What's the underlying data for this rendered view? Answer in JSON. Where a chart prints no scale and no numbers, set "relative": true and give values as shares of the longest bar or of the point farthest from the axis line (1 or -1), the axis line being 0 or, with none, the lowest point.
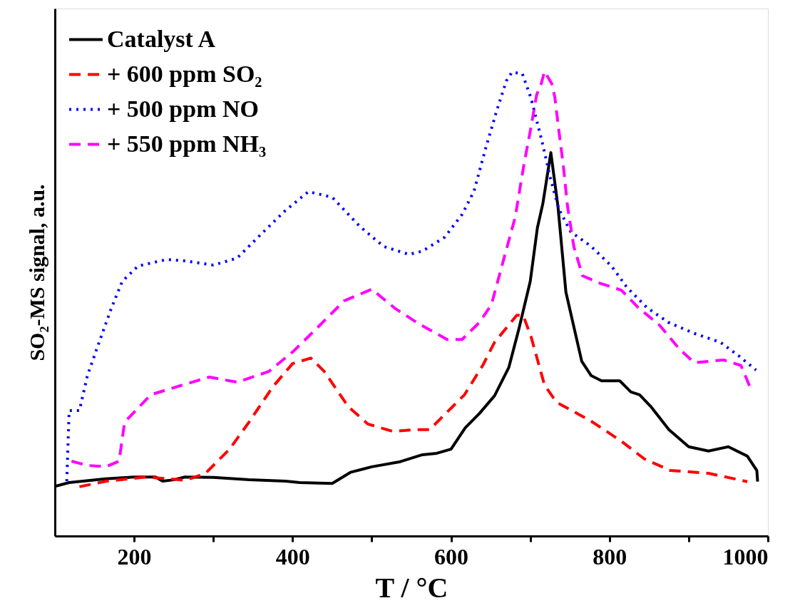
{
  "chart_data": {
    "type": "line",
    "relative": true,
    "xlabel": "T / °C",
    "ylabel": "SO₂-MS signal, a.u.",
    "legend": "top left",
    "grid": false,
    "xlim": [
      100,
      1000
    ],
    "xticks": [
      200,
      {
        "value": 300,
        "label": null
      },
      400,
      {
        "value": 500,
        "label": null
      },
      600,
      {
        "value": 700,
        "label": null
      },
      800,
      {
        "value": 900,
        "label": null
      },
      1000
    ],
    "series": [
      {
        "name": "Catalyst A",
        "color": "#000000",
        "line_style": "solid",
        "x": [
          100,
          118,
          164,
          200,
          227,
          236,
          250,
          264,
          300,
          345,
          391,
          409,
          450,
          473,
          500,
          536,
          564,
          582,
          600,
          618,
          636,
          655,
          673,
          686,
          700,
          709,
          716,
          726,
          735,
          745,
          765,
          777,
          790,
          813,
          827,
          838,
          852,
          875,
          900,
          925,
          950,
          974,
          986,
          987
        ],
        "values": [
          0.107,
          0.115,
          0.123,
          0.127,
          0.127,
          0.118,
          0.121,
          0.127,
          0.126,
          0.121,
          0.118,
          0.115,
          0.113,
          0.137,
          0.149,
          0.16,
          0.175,
          0.178,
          0.187,
          0.233,
          0.264,
          0.302,
          0.363,
          0.448,
          0.548,
          0.663,
          0.716,
          0.825,
          0.709,
          0.525,
          0.376,
          0.345,
          0.334,
          0.334,
          0.31,
          0.304,
          0.279,
          0.229,
          0.192,
          0.183,
          0.192,
          0.172,
          0.141,
          0.117
        ]
      },
      {
        "name": "+ 600 ppm SO₂",
        "color": "#ff0000",
        "line_style": "dashed",
        "x": [
          131,
          165,
          215,
          265,
          290,
          320,
          345,
          375,
          400,
          423,
          440,
          470,
          495,
          527,
          555,
          573,
          617,
          640,
          655,
          683,
          691,
          701,
          718,
          733,
          777,
          815,
          844,
          877,
          925,
          974
        ],
        "values": [
          0.106,
          0.118,
          0.127,
          0.12,
          0.135,
          0.186,
          0.245,
          0.321,
          0.371,
          0.383,
          0.354,
          0.279,
          0.241,
          0.225,
          0.229,
          0.229,
          0.304,
          0.367,
          0.417,
          0.475,
          0.475,
          0.429,
          0.325,
          0.288,
          0.247,
          0.204,
          0.166,
          0.141,
          0.135,
          0.117
        ]
      },
      {
        "name": "+ 500 ppm NO",
        "color": "#0000ff",
        "line_style": "dotted",
        "x": [
          115,
          118,
          131,
          141,
          155,
          171,
          185,
          205,
          241,
          265,
          300,
          330,
          360,
          390,
          420,
          450,
          485,
          515,
          547,
          564,
          592,
          614,
          629,
          644,
          658,
          670,
          677,
          690,
          701,
          715,
          725,
          736,
          751,
          777,
          803,
          822,
          847,
          874,
          907,
          940,
          963,
          985
        ],
        "values": [
          0.118,
          0.27,
          0.27,
          0.345,
          0.413,
          0.489,
          0.548,
          0.581,
          0.595,
          0.592,
          0.583,
          0.598,
          0.649,
          0.699,
          0.741,
          0.729,
          0.666,
          0.623,
          0.606,
          0.613,
          0.643,
          0.692,
          0.742,
          0.836,
          0.917,
          0.98,
          0.998,
          0.995,
          0.942,
          0.848,
          0.773,
          0.704,
          0.655,
          0.623,
          0.58,
          0.535,
          0.492,
          0.46,
          0.436,
          0.417,
          0.388,
          0.357
        ]
      },
      {
        "name": "+ 550 ppm NH₃",
        "color": "#ff00ff",
        "line_style": "dashed",
        "x": [
          121,
          141,
          164,
          181,
          188,
          221,
          261,
          295,
          330,
          370,
          400,
          430,
          465,
          500,
          530,
          560,
          595,
          614,
          636,
          651,
          665,
          681,
          692,
          701,
          708,
          714,
          718,
          727,
          731,
          736,
          742,
          747,
          755,
          766,
          788,
          815,
          836,
          863,
          888,
          907,
          944,
          966,
          977
        ],
        "values": [
          0.161,
          0.152,
          0.149,
          0.161,
          0.245,
          0.304,
          0.325,
          0.342,
          0.331,
          0.354,
          0.396,
          0.446,
          0.506,
          0.531,
          0.489,
          0.456,
          0.423,
          0.423,
          0.46,
          0.498,
          0.586,
          0.686,
          0.799,
          0.88,
          0.949,
          0.974,
          1.0,
          0.974,
          0.945,
          0.874,
          0.793,
          0.71,
          0.623,
          0.56,
          0.544,
          0.529,
          0.492,
          0.454,
          0.403,
          0.373,
          0.379,
          0.367,
          0.322
        ]
      }
    ]
  }
}
